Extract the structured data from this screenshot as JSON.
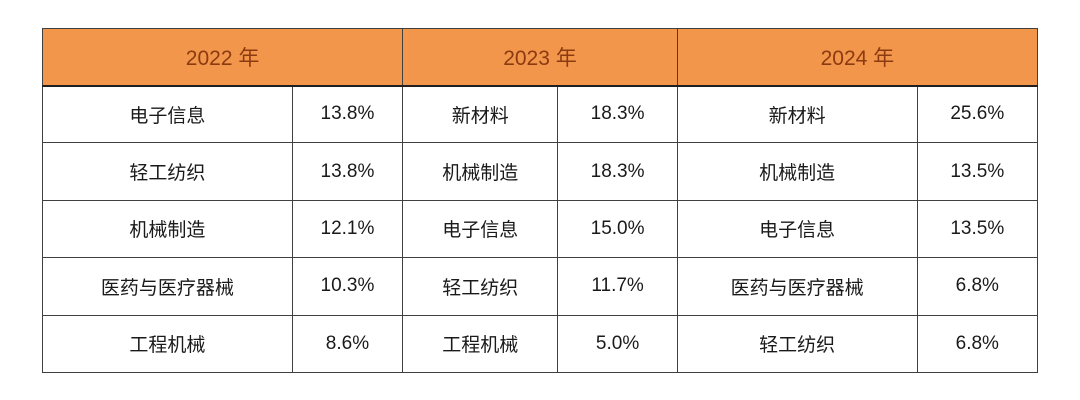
{
  "styles": {
    "header_bg": "#f2964c",
    "header_text": "#8c3a10",
    "border": "#404040",
    "body_text": "#1a1a1a"
  },
  "chart_data": {
    "type": "table",
    "title": "",
    "columns_per_year": [
      "industry",
      "share"
    ],
    "years": [
      {
        "label": "2022 年",
        "rows": [
          {
            "name": "电子信息",
            "value": "13.8%"
          },
          {
            "name": "轻工纺织",
            "value": "13.8%"
          },
          {
            "name": "机械制造",
            "value": "12.1%"
          },
          {
            "name": "医药与医疗器械",
            "value": "10.3%"
          },
          {
            "name": "工程机械",
            "value": "8.6%"
          }
        ]
      },
      {
        "label": "2023 年",
        "rows": [
          {
            "name": "新材料",
            "value": "18.3%"
          },
          {
            "name": "机械制造",
            "value": "18.3%"
          },
          {
            "name": "电子信息",
            "value": "15.0%"
          },
          {
            "name": "轻工纺织",
            "value": "11.7%"
          },
          {
            "name": "工程机械",
            "value": "5.0%"
          }
        ]
      },
      {
        "label": "2024 年",
        "rows": [
          {
            "name": "新材料",
            "value": "25.6%"
          },
          {
            "name": "机械制造",
            "value": "13.5%"
          },
          {
            "name": "电子信息",
            "value": "13.5%"
          },
          {
            "name": "医药与医疗器械",
            "value": "6.8%"
          },
          {
            "name": "轻工纺织",
            "value": "6.8%"
          }
        ]
      }
    ]
  }
}
